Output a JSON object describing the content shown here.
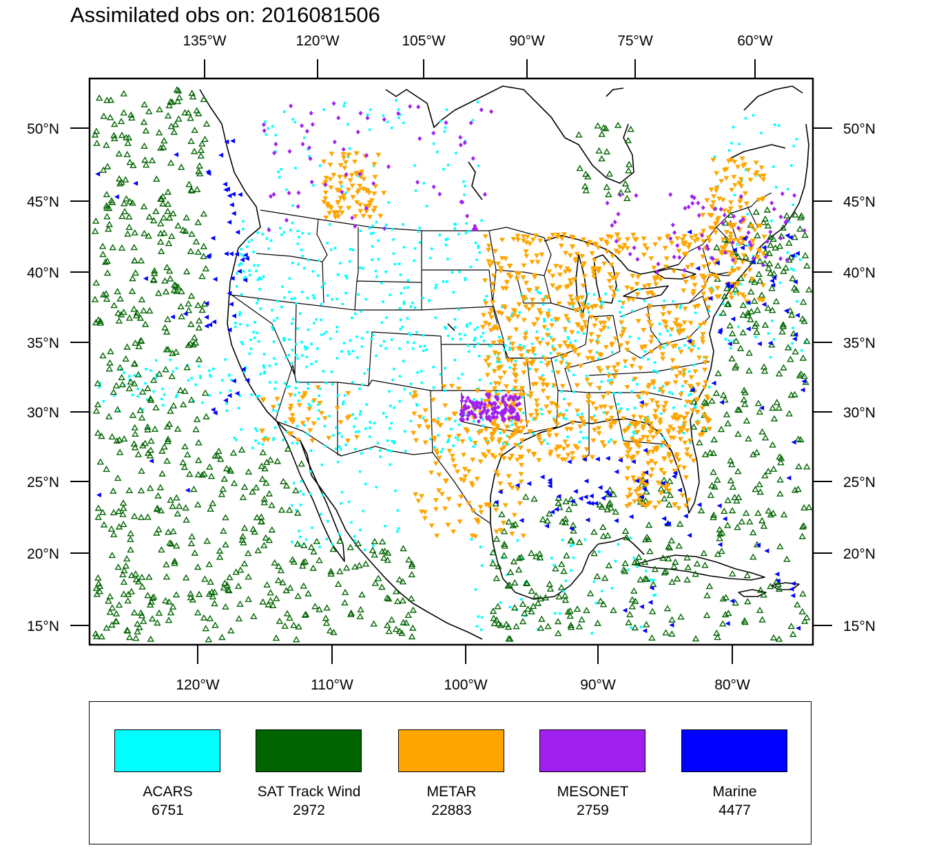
{
  "title": "Assimilated obs on: 2016081506",
  "axes": {
    "top_lon_labels": [
      "135°W",
      "120°W",
      "105°W",
      "90°W",
      "75°W",
      "60°W"
    ],
    "bottom_lon_labels": [
      "120°W",
      "110°W",
      "100°W",
      "90°W",
      "80°W"
    ],
    "lat_labels": [
      "50°N",
      "45°N",
      "40°N",
      "35°N",
      "30°N",
      "25°N",
      "20°N",
      "15°N"
    ]
  },
  "legend": [
    {
      "name": "ACARS",
      "count": "6751",
      "color": "#00ffff",
      "symbol": "small-square"
    },
    {
      "name": "SAT Track Wind",
      "count": "2972",
      "color": "#006400",
      "symbol": "open-triangle"
    },
    {
      "name": "METAR",
      "count": "22883",
      "color": "#ffa500",
      "symbol": "inverted-triangle"
    },
    {
      "name": "MESONET",
      "count": "2759",
      "color": "#a020f0",
      "symbol": "diamond"
    },
    {
      "name": "Marine",
      "count": "4477",
      "color": "#0000ff",
      "symbol": "left-triangle"
    }
  ],
  "colors": {
    "acars": "#00ffff",
    "sat": "#006400",
    "metar": "#ffa500",
    "mesonet": "#a020f0",
    "marine": "#0000ff"
  }
}
